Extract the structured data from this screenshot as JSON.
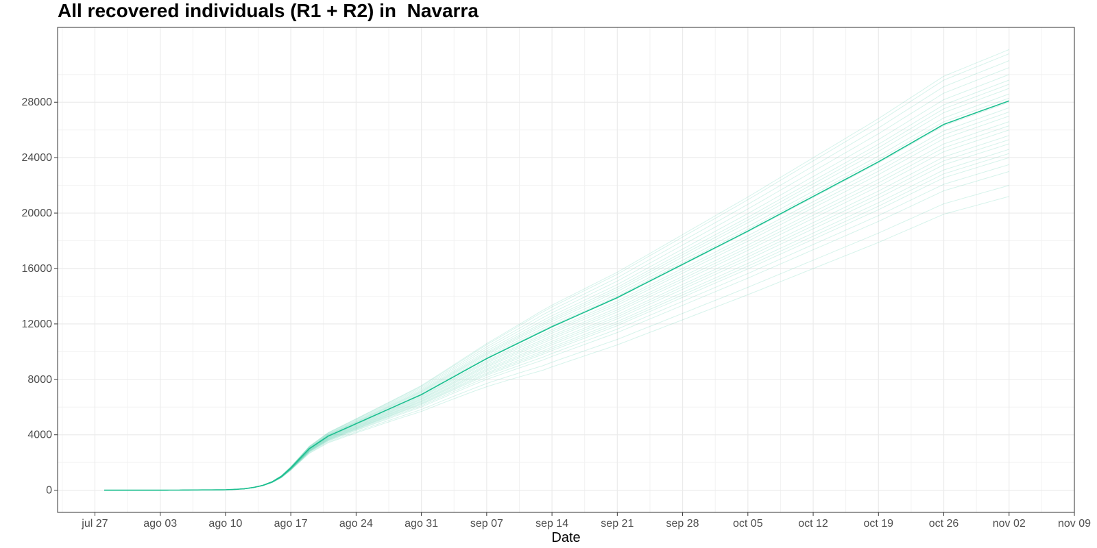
{
  "chart_data": {
    "type": "line",
    "title": "All recovered individuals (R1 + R2) in  Navarra",
    "xlabel": "Date",
    "ylabel": "",
    "x_tick_labels": [
      "jul 27",
      "ago 03",
      "ago 10",
      "ago 17",
      "ago 24",
      "ago 31",
      "sep 07",
      "sep 14",
      "sep 21",
      "sep 28",
      "oct 05",
      "oct 12",
      "oct 19",
      "oct 26",
      "nov 02",
      "nov 09"
    ],
    "y_ticks": [
      0,
      4000,
      8000,
      12000,
      16000,
      20000,
      24000,
      28000
    ],
    "xlim": [
      "2020-07-23",
      "2020-11-09"
    ],
    "ylim": [
      -1600,
      33400
    ],
    "x_range_days": [
      -4,
      105
    ],
    "line_color": "#1bbf8f",
    "grid": true,
    "median_series": {
      "x_days": [
        1,
        7,
        14,
        15,
        16,
        17,
        18,
        19,
        20,
        21,
        22,
        23,
        25,
        28,
        35,
        42,
        49,
        56,
        63,
        70,
        77,
        84,
        91,
        98,
        101
      ],
      "values": [
        0,
        0,
        30,
        60,
        100,
        200,
        350,
        600,
        1000,
        1600,
        2300,
        3000,
        3900,
        4800,
        6900,
        9500,
        11800,
        13900,
        16300,
        18700,
        21200,
        23700,
        26400,
        28100,
        28100
      ]
    },
    "ensemble_end_values": [
      21200,
      22000,
      23000,
      23500,
      24000,
      24300,
      24600,
      25000,
      25300,
      25600,
      26000,
      26300,
      26600,
      27000,
      27300,
      27600,
      28000,
      28300,
      28600,
      29000,
      29300,
      29600,
      30000,
      30500,
      31000,
      31500,
      31800
    ]
  }
}
